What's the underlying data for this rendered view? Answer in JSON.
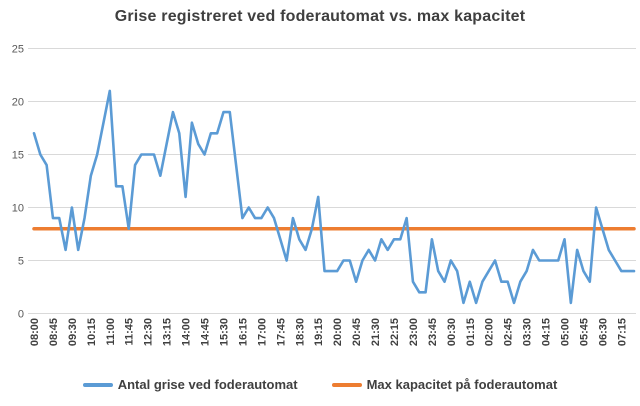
{
  "chart_data": {
    "type": "line",
    "title": "Grise registreret ved foderautomat vs. max kapacitet",
    "xlabel": "",
    "ylabel": "",
    "ylim": [
      0,
      25
    ],
    "y_ticks": [
      0,
      5,
      10,
      15,
      20,
      25
    ],
    "grid": true,
    "x_label_every": 3,
    "x_label_rotation": -90,
    "legend_position": "bottom",
    "x": [
      "08:00",
      "08:15",
      "08:30",
      "08:45",
      "09:00",
      "09:15",
      "09:30",
      "09:45",
      "10:00",
      "10:15",
      "10:30",
      "10:45",
      "11:00",
      "11:15",
      "11:30",
      "11:45",
      "12:00",
      "12:15",
      "12:30",
      "12:45",
      "13:00",
      "13:15",
      "13:30",
      "13:45",
      "14:00",
      "14:15",
      "14:30",
      "14:45",
      "15:00",
      "15:15",
      "15:30",
      "15:45",
      "16:00",
      "16:15",
      "16:30",
      "16:45",
      "17:00",
      "17:15",
      "17:30",
      "17:45",
      "18:00",
      "18:15",
      "18:30",
      "18:45",
      "19:00",
      "19:15",
      "19:30",
      "19:45",
      "20:00",
      "20:15",
      "20:30",
      "20:45",
      "21:00",
      "21:15",
      "21:30",
      "21:45",
      "22:00",
      "22:15",
      "22:30",
      "22:45",
      "23:00",
      "23:15",
      "23:30",
      "23:45",
      "00:00",
      "00:15",
      "00:30",
      "00:45",
      "01:00",
      "01:15",
      "01:30",
      "01:45",
      "02:00",
      "02:15",
      "02:30",
      "02:45",
      "03:00",
      "03:15",
      "03:30",
      "03:45",
      "04:00",
      "04:15",
      "04:30",
      "04:45",
      "05:00",
      "05:15",
      "05:30",
      "05:45",
      "06:00",
      "06:15",
      "06:30",
      "06:45",
      "07:00",
      "07:15",
      "07:30",
      "07:45"
    ],
    "series": [
      {
        "name": "Antal grise ved foderautomat",
        "color": "#5B9BD5",
        "values": [
          17,
          15,
          14,
          9,
          9,
          6,
          10,
          6,
          9,
          13,
          15,
          18,
          21,
          12,
          12,
          8,
          14,
          15,
          15,
          15,
          13,
          16,
          19,
          17,
          11,
          18,
          16,
          15,
          17,
          17,
          19,
          19,
          14,
          9,
          10,
          9,
          9,
          10,
          9,
          7,
          5,
          9,
          7,
          6,
          8,
          11,
          4,
          4,
          4,
          5,
          5,
          3,
          5,
          6,
          5,
          7,
          6,
          7,
          7,
          9,
          3,
          2,
          2,
          7,
          4,
          3,
          5,
          4,
          1,
          3,
          1,
          3,
          4,
          5,
          3,
          3,
          1,
          3,
          4,
          6,
          5,
          5,
          5,
          5,
          7,
          1,
          6,
          4,
          3,
          10,
          8,
          6,
          5,
          4,
          4,
          4
        ]
      },
      {
        "name": "Max kapacitet på foderautomat",
        "color": "#ED7D31",
        "type": "constant",
        "value": 8
      }
    ]
  },
  "colors": {
    "background": "#FFFFFF",
    "gridline": "#D9D9D9",
    "y_axis_text": "#595959",
    "x_axis_text": "#404040",
    "title_text": "#3F3F3F"
  }
}
